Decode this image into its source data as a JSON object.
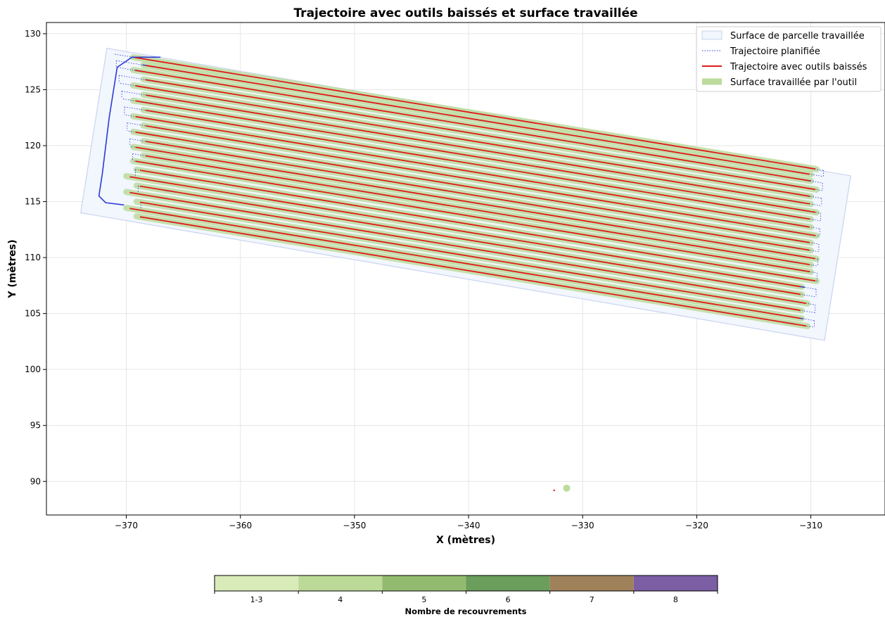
{
  "chart_data": {
    "type": "line",
    "title": "Trajectoire avec outils baissés et surface travaillée",
    "xlabel": "X (mètres)",
    "ylabel": "Y (mètres)",
    "xlim": [
      -377,
      -303.5
    ],
    "ylim": [
      87,
      131
    ],
    "xticks": [
      -370,
      -360,
      -350,
      -340,
      -330,
      -320,
      -310
    ],
    "yticks": [
      90,
      95,
      100,
      105,
      110,
      115,
      120,
      125,
      130
    ],
    "grid": true,
    "legend_placement": "top-right",
    "legend": [
      {
        "label": "Surface de parcelle travaillée",
        "kind": "patch"
      },
      {
        "label": "Trajectoire planifiée",
        "kind": "dotted-line"
      },
      {
        "label": "Trajectoire avec outils baissés",
        "kind": "line"
      },
      {
        "label": "Surface travaillée par l'outil",
        "kind": "band"
      }
    ],
    "parcel_polygon": [
      [
        -371.7,
        128.7
      ],
      [
        -306.5,
        117.3
      ],
      [
        -308.8,
        102.6
      ],
      [
        -374.0,
        114.0
      ]
    ],
    "passes": {
      "count": 22,
      "slope": -0.167,
      "y_intercepts_at_x_minus_370": [
        128.0,
        127.45,
        126.86,
        126.17,
        125.48,
        124.8,
        124.13,
        123.44,
        122.73,
        122.05,
        121.34,
        120.66,
        119.99,
        119.37,
        118.74,
        118.0,
        117.27,
        116.58,
        115.86,
        115.15,
        114.44,
        113.84
      ],
      "worked_x_start": -369.4,
      "worked_x_end": -310.0,
      "planned_x_start": -371.0,
      "planned_x_end": -308.9
    },
    "headland_turn": [
      [
        -367.0,
        127.9
      ],
      [
        -369.5,
        127.9
      ],
      [
        -370.8,
        127.0
      ],
      [
        -371.5,
        122.5
      ],
      [
        -372.1,
        117.5
      ],
      [
        -372.4,
        115.5
      ],
      [
        -371.8,
        114.9
      ],
      [
        -370.2,
        114.7
      ]
    ],
    "stray_points": {
      "worked": {
        "x": -331.4,
        "y": 89.4
      },
      "lowered": {
        "x": -332.5,
        "y": 89.2
      }
    },
    "colorbar": {
      "label": "Nombre de recouvrements",
      "categories": [
        "1-3",
        "4",
        "5",
        "6",
        "7",
        "8"
      ],
      "colors": [
        "#d8ebb9",
        "#bbd997",
        "#93bb6f",
        "#6b9d5c",
        "#a0825a",
        "#7b5ea4"
      ]
    },
    "colors": {
      "parcel_fill": "#f2f6fd",
      "parcel_edge": "#c8d4f0",
      "planned": "#2b3bd6",
      "lowered": "#e01a1a",
      "worked": "#bcdb9c"
    }
  }
}
